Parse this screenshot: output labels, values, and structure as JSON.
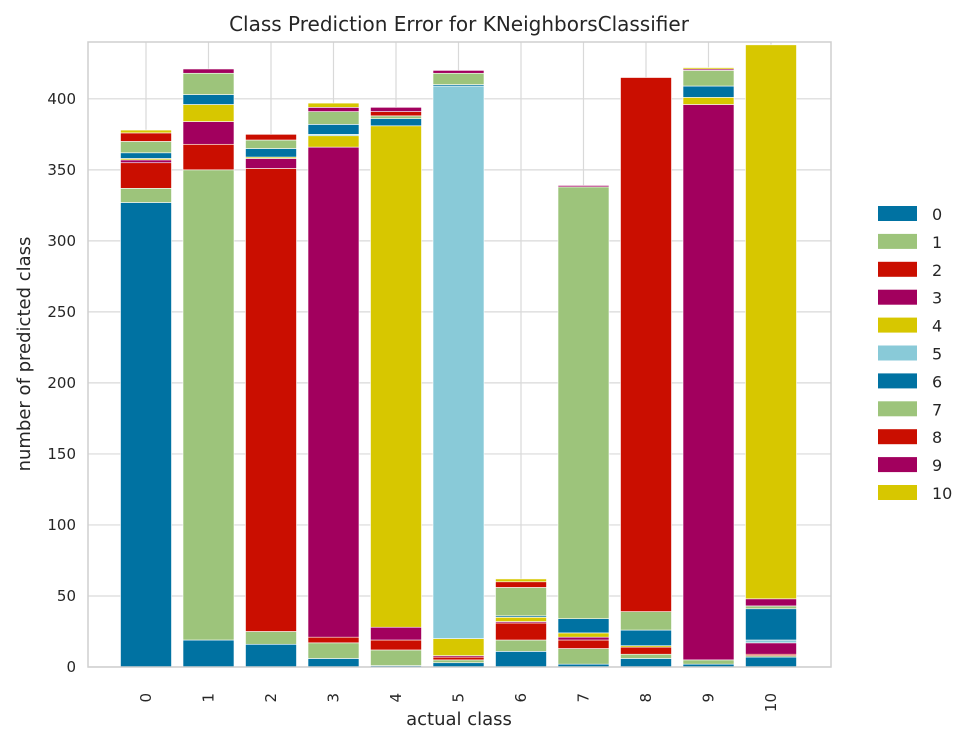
{
  "chart_data": {
    "type": "bar",
    "stacked": true,
    "title": "Class Prediction Error for KNeighborsClassifier",
    "xlabel": "actual class",
    "ylabel": "number of predicted class",
    "categories": [
      "0",
      "1",
      "2",
      "3",
      "4",
      "5",
      "6",
      "7",
      "8",
      "9",
      "10"
    ],
    "ylim": [
      0,
      440
    ],
    "yticks": [
      0,
      50,
      100,
      150,
      200,
      250,
      300,
      350,
      400
    ],
    "grid": true,
    "legend_placement": "right",
    "series": [
      {
        "name": "0",
        "color": "#0072a2",
        "values": [
          327,
          19,
          16,
          6,
          1,
          3,
          11,
          2,
          6,
          2,
          7
        ]
      },
      {
        "name": "1",
        "color": "#9dc47b",
        "values": [
          10,
          331,
          9,
          11,
          11,
          2,
          8,
          11,
          3,
          3,
          1
        ]
      },
      {
        "name": "2",
        "color": "#ca0e00",
        "values": [
          18,
          18,
          326,
          4,
          7,
          2,
          12,
          6,
          5,
          0,
          1
        ]
      },
      {
        "name": "3",
        "color": "#a2005e",
        "values": [
          2,
          16,
          7,
          345,
          9,
          1,
          1,
          2,
          0,
          391,
          8
        ]
      },
      {
        "name": "4",
        "color": "#d7c700",
        "values": [
          1,
          12,
          1,
          8,
          353,
          12,
          3,
          3,
          1,
          5,
          0
        ]
      },
      {
        "name": "5",
        "color": "#89cad8",
        "values": [
          0,
          0,
          0,
          1,
          0,
          389,
          0,
          0,
          0,
          0,
          2
        ]
      },
      {
        "name": "6",
        "color": "#0072a2",
        "values": [
          4,
          7,
          6,
          7,
          5,
          1,
          1,
          10,
          11,
          8,
          22
        ]
      },
      {
        "name": "7",
        "color": "#9dc47b",
        "values": [
          8,
          15,
          6,
          9,
          2,
          8,
          20,
          304,
          13,
          11,
          2
        ]
      },
      {
        "name": "8",
        "color": "#ca0e00",
        "values": [
          6,
          0,
          4,
          0,
          3,
          0,
          4,
          0,
          376,
          0,
          0
        ]
      },
      {
        "name": "9",
        "color": "#a2005e",
        "values": [
          0,
          3,
          0,
          3,
          3,
          2,
          0,
          1,
          0,
          1,
          5
        ]
      },
      {
        "name": "10",
        "color": "#d7c700",
        "values": [
          2,
          0,
          0,
          3,
          0,
          0,
          2,
          0,
          0,
          1,
          390
        ]
      }
    ]
  }
}
